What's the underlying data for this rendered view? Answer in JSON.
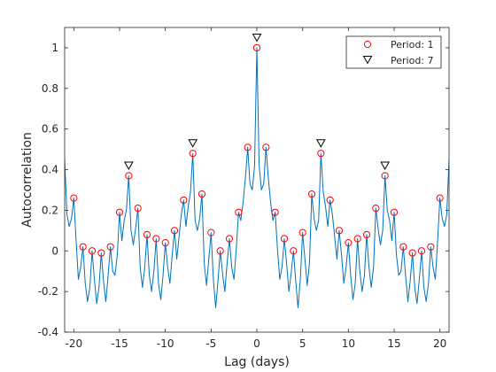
{
  "chart_data": {
    "type": "line",
    "title": "",
    "xlabel": "Lag (days)",
    "ylabel": "Autocorrelation",
    "xlim": [
      -21,
      21
    ],
    "ylim": [
      -0.4,
      1.1
    ],
    "xticks": [
      -20,
      -15,
      -10,
      -5,
      0,
      5,
      10,
      15,
      20
    ],
    "xtick_labels": [
      "-20",
      "-15",
      "-10",
      "-5",
      "0",
      "5",
      "10",
      "15",
      "20"
    ],
    "yticks": [
      -0.4,
      -0.2,
      0,
      0.2,
      0.4,
      0.6,
      0.8,
      1
    ],
    "ytick_labels": [
      "-0.4",
      "-0.2",
      "0",
      "0.2",
      "0.4",
      "0.6",
      "0.8",
      "1"
    ],
    "grid": false,
    "legend_position": "top-right",
    "series": [
      {
        "style": "line",
        "color": "#0072BD",
        "x": [
          -21,
          -20.75,
          -20.5,
          -20.25,
          -20,
          -19.75,
          -19.5,
          -19.25,
          -19,
          -18.75,
          -18.5,
          -18.25,
          -18,
          -17.75,
          -17.5,
          -17.25,
          -17,
          -16.75,
          -16.5,
          -16.25,
          -16,
          -15.75,
          -15.5,
          -15.25,
          -15,
          -14.75,
          -14.5,
          -14.25,
          -14,
          -13.75,
          -13.5,
          -13.25,
          -13,
          -12.75,
          -12.5,
          -12.25,
          -12,
          -11.75,
          -11.5,
          -11.25,
          -11,
          -10.75,
          -10.5,
          -10.25,
          -10,
          -9.75,
          -9.5,
          -9.25,
          -9,
          -8.75,
          -8.5,
          -8.25,
          -8,
          -7.75,
          -7.5,
          -7.25,
          -7,
          -6.75,
          -6.5,
          -6.25,
          -6,
          -5.75,
          -5.5,
          -5.25,
          -5,
          -4.75,
          -4.5,
          -4.25,
          -4,
          -3.75,
          -3.5,
          -3.25,
          -3,
          -2.75,
          -2.5,
          -2.25,
          -2,
          -1.75,
          -1.5,
          -1.25,
          -1,
          -0.75,
          -0.5,
          -0.25,
          0,
          0.25,
          0.5,
          0.75,
          1,
          1.25,
          1.5,
          1.75,
          2,
          2.25,
          2.5,
          2.75,
          3,
          3.25,
          3.5,
          3.75,
          4,
          4.25,
          4.5,
          4.75,
          5,
          5.25,
          5.5,
          5.75,
          6,
          6.25,
          6.5,
          6.75,
          7,
          7.25,
          7.5,
          7.75,
          8,
          8.25,
          8.5,
          8.75,
          9,
          9.25,
          9.5,
          9.75,
          10,
          10.25,
          10.5,
          10.75,
          11,
          11.25,
          11.5,
          11.75,
          12,
          12.25,
          12.5,
          12.75,
          13,
          13.25,
          13.5,
          13.75,
          14,
          14.25,
          14.5,
          14.75,
          15,
          15.25,
          15.5,
          15.75,
          16,
          16.25,
          16.5,
          16.75,
          17,
          17.25,
          17.5,
          17.75,
          18,
          18.25,
          18.5,
          18.75,
          19,
          19.25,
          19.5,
          19.75,
          20,
          20.25,
          20.5,
          20.75,
          21
        ],
        "y": [
          0.45,
          0.18,
          0.12,
          0.16,
          0.26,
          0.05,
          -0.14,
          -0.08,
          0.02,
          -0.16,
          -0.25,
          -0.18,
          0.0,
          -0.14,
          -0.26,
          -0.18,
          -0.01,
          -0.15,
          -0.25,
          -0.12,
          0.02,
          -0.1,
          -0.12,
          -0.02,
          0.19,
          0.05,
          0.15,
          0.2,
          0.37,
          0.1,
          0.03,
          0.11,
          0.21,
          -0.08,
          -0.18,
          -0.08,
          0.08,
          -0.12,
          -0.2,
          -0.1,
          0.06,
          -0.16,
          -0.24,
          -0.12,
          0.04,
          -0.08,
          -0.16,
          -0.02,
          0.1,
          -0.04,
          0.07,
          0.18,
          0.25,
          0.12,
          0.22,
          0.29,
          0.48,
          0.15,
          0.1,
          0.16,
          0.28,
          -0.06,
          -0.17,
          -0.04,
          0.09,
          -0.14,
          -0.28,
          -0.15,
          0.0,
          -0.11,
          -0.2,
          -0.06,
          0.06,
          -0.08,
          -0.14,
          0.01,
          0.19,
          0.15,
          0.24,
          0.36,
          0.51,
          0.33,
          0.3,
          0.42,
          1.0,
          0.42,
          0.3,
          0.33,
          0.51,
          0.36,
          0.24,
          0.15,
          0.19,
          0.01,
          -0.14,
          -0.08,
          0.06,
          -0.06,
          -0.2,
          -0.11,
          0.0,
          -0.15,
          -0.28,
          -0.14,
          0.09,
          -0.04,
          -0.17,
          -0.06,
          0.28,
          0.16,
          0.1,
          0.15,
          0.48,
          0.29,
          0.22,
          0.12,
          0.25,
          0.18,
          0.07,
          -0.04,
          0.1,
          -0.02,
          -0.16,
          -0.08,
          0.04,
          -0.12,
          -0.24,
          -0.16,
          0.06,
          -0.1,
          -0.2,
          -0.12,
          0.08,
          -0.08,
          -0.18,
          -0.08,
          0.21,
          0.11,
          0.03,
          0.1,
          0.37,
          0.2,
          0.15,
          0.05,
          0.19,
          -0.02,
          -0.12,
          -0.1,
          0.02,
          -0.12,
          -0.25,
          -0.15,
          -0.01,
          -0.18,
          -0.26,
          -0.14,
          0.0,
          -0.18,
          -0.25,
          -0.16,
          0.02,
          -0.08,
          -0.14,
          0.05,
          0.26,
          0.16,
          0.12,
          0.18,
          0.45
        ]
      },
      {
        "name": "Period: 1",
        "style": "marker",
        "marker": "circle",
        "color": "#FF0000",
        "x": [
          -20,
          -19,
          -18,
          -17,
          -16,
          -15,
          -14,
          -13,
          -12,
          -11,
          -10,
          -9,
          -8,
          -7,
          -6,
          -5,
          -4,
          -3,
          -2,
          -1,
          0,
          1,
          2,
          3,
          4,
          5,
          6,
          7,
          8,
          9,
          10,
          11,
          12,
          13,
          14,
          15,
          16,
          17,
          18,
          19,
          20
        ],
        "y": [
          0.26,
          0.02,
          0.0,
          -0.01,
          0.02,
          0.19,
          0.37,
          0.21,
          0.08,
          0.06,
          0.04,
          0.1,
          0.25,
          0.48,
          0.28,
          0.09,
          0.0,
          0.06,
          0.19,
          0.51,
          1.0,
          0.51,
          0.19,
          0.06,
          0.0,
          0.09,
          0.28,
          0.48,
          0.25,
          0.1,
          0.04,
          0.06,
          0.08,
          0.21,
          0.37,
          0.19,
          0.02,
          -0.01,
          0.0,
          0.02,
          0.26
        ]
      },
      {
        "name": "Period: 7",
        "style": "marker",
        "marker": "triangle-down",
        "color": "#000000",
        "x": [
          -14,
          -7,
          0,
          7,
          14
        ],
        "y": [
          0.42,
          0.53,
          1.05,
          0.53,
          0.42
        ]
      }
    ]
  }
}
